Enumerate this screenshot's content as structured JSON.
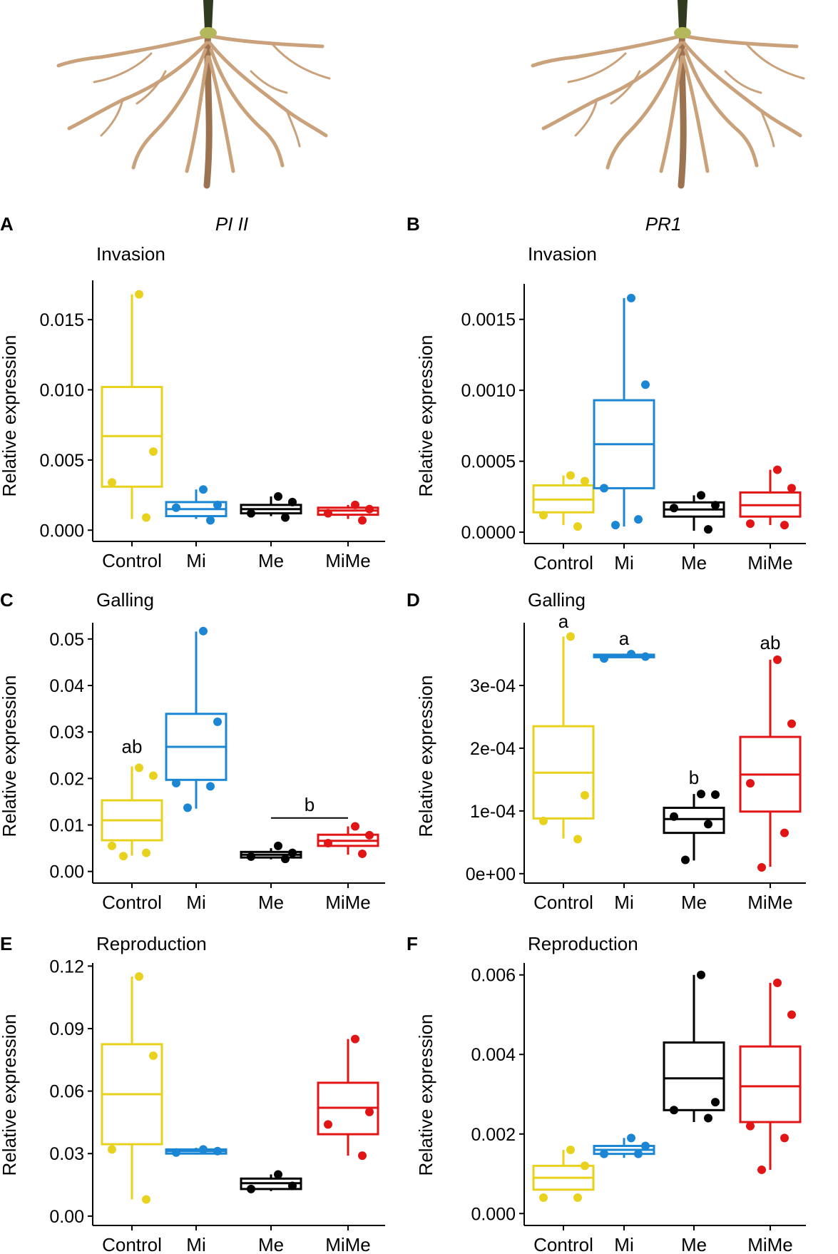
{
  "figure": {
    "colors": {
      "Control": "#e8d21e",
      "Mi": "#1b86d3",
      "Me": "#000000",
      "MiMe": "#e11515"
    },
    "columns": [
      {
        "gene": "PI II",
        "icon": "root-illustration"
      },
      {
        "gene": "PR1",
        "icon": "root-illustration"
      }
    ]
  },
  "chart_data": [
    {
      "panel": "A",
      "type": "box",
      "title": "Invasion",
      "ylabel": "Relative expression",
      "categories": [
        "Control",
        "Mi",
        "Me",
        "MiMe"
      ],
      "ylim": [
        -0.0008,
        0.0178
      ],
      "yticks": [
        0.0,
        0.005,
        0.01,
        0.015
      ],
      "yticklabels": [
        "0.000",
        "0.005",
        "0.010",
        "0.015"
      ],
      "boxes": [
        {
          "group": "Control",
          "min": 0.0008,
          "q1": 0.0031,
          "median": 0.0067,
          "q3": 0.0102,
          "max": 0.0168,
          "points": [
            0.0168,
            0.0056,
            0.0034,
            0.0009
          ]
        },
        {
          "group": "Mi",
          "min": 0.0008,
          "q1": 0.001,
          "median": 0.0015,
          "q3": 0.002,
          "max": 0.0029,
          "points": [
            0.0029,
            0.0018,
            0.0016,
            0.0007
          ]
        },
        {
          "group": "Me",
          "min": 0.001,
          "q1": 0.0012,
          "median": 0.0015,
          "q3": 0.0018,
          "max": 0.0024,
          "points": [
            0.0024,
            0.002,
            0.0012,
            0.0009
          ]
        },
        {
          "group": "MiMe",
          "min": 0.0008,
          "q1": 0.0011,
          "median": 0.0014,
          "q3": 0.0016,
          "max": 0.0018,
          "points": [
            0.0018,
            0.0015,
            0.0012,
            0.0007
          ]
        }
      ],
      "annotations": []
    },
    {
      "panel": "B",
      "type": "box",
      "title": "Invasion",
      "ylabel": "Relative expression",
      "categories": [
        "Control",
        "Mi",
        "Me",
        "MiMe"
      ],
      "ylim": [
        -8e-05,
        0.00175
      ],
      "yticks": [
        0.0,
        0.0005,
        0.001,
        0.0015
      ],
      "yticklabels": [
        "0.0000",
        "0.0005",
        "0.0010",
        "0.0015"
      ],
      "boxes": [
        {
          "group": "Control",
          "min": 5e-05,
          "q1": 0.00014,
          "median": 0.00023,
          "q3": 0.00033,
          "max": 0.0004,
          "points": [
            0.0004,
            0.00036,
            0.00012,
            4e-05
          ]
        },
        {
          "group": "Mi",
          "min": 4e-05,
          "q1": 0.00031,
          "median": 0.00062,
          "q3": 0.00093,
          "max": 0.00165,
          "points": [
            0.00165,
            0.00104,
            0.00031,
            9e-05,
            5e-05
          ]
        },
        {
          "group": "Me",
          "min": 1e-05,
          "q1": 0.00011,
          "median": 0.00016,
          "q3": 0.00021,
          "max": 0.00026,
          "points": [
            0.00026,
            0.00019,
            0.00017,
            2e-05
          ]
        },
        {
          "group": "MiMe",
          "min": 5e-05,
          "q1": 0.00011,
          "median": 0.00019,
          "q3": 0.00028,
          "max": 0.00044,
          "points": [
            0.00044,
            0.00031,
            6e-05,
            5e-05
          ]
        }
      ],
      "annotations": []
    },
    {
      "panel": "C",
      "type": "box",
      "title": "Galling",
      "ylabel": "Relative expression",
      "categories": [
        "Control",
        "Mi",
        "Me",
        "MiMe"
      ],
      "ylim": [
        -0.0025,
        0.0535
      ],
      "yticks": [
        0.0,
        0.01,
        0.02,
        0.03,
        0.04,
        0.05
      ],
      "yticklabels": [
        "0.00",
        "0.01",
        "0.02",
        "0.03",
        "0.04",
        "0.05"
      ],
      "boxes": [
        {
          "group": "Control",
          "min": 0.0034,
          "q1": 0.0067,
          "median": 0.011,
          "q3": 0.0153,
          "max": 0.0226,
          "points": [
            0.0223,
            0.0206,
            0.0055,
            0.004,
            0.0033
          ]
        },
        {
          "group": "Mi",
          "min": 0.0135,
          "q1": 0.0197,
          "median": 0.0268,
          "q3": 0.0339,
          "max": 0.0516,
          "points": [
            0.0517,
            0.0322,
            0.019,
            0.0183,
            0.0137
          ]
        },
        {
          "group": "Me",
          "min": 0.0026,
          "q1": 0.003,
          "median": 0.0036,
          "q3": 0.0042,
          "max": 0.005,
          "points": [
            0.0055,
            0.004,
            0.0032,
            0.0027
          ]
        },
        {
          "group": "MiMe",
          "min": 0.0036,
          "q1": 0.0055,
          "median": 0.0066,
          "q3": 0.0079,
          "max": 0.0097,
          "points": [
            0.0097,
            0.0078,
            0.0061,
            0.0038
          ]
        }
      ],
      "annotations": [
        {
          "text": "ab",
          "x": "Control",
          "y": 0.0255
        },
        {
          "text": "b",
          "x": "Me-MiMe",
          "y": 0.013,
          "bracket": [
            "Me",
            "MiMe"
          ],
          "bracket_y": 0.0115
        }
      ]
    },
    {
      "panel": "D",
      "type": "box",
      "title": "Galling",
      "ylabel": "Relative expression",
      "categories": [
        "Control",
        "Mi",
        "Me",
        "MiMe"
      ],
      "ylim": [
        -1.5e-05,
        0.0004
      ],
      "yticks": [
        0.0,
        0.0001,
        0.0002,
        0.0003
      ],
      "yticklabels": [
        "0e+00",
        "1e-04",
        "2e-04",
        "3e-04"
      ],
      "boxes": [
        {
          "group": "Control",
          "min": 5.6e-05,
          "q1": 8.8e-05,
          "median": 0.000161,
          "q3": 0.000235,
          "max": 0.000378,
          "points": [
            0.000378,
            0.000125,
            8.4e-05,
            5.5e-05
          ]
        },
        {
          "group": "Mi",
          "min": 0.000344,
          "q1": 0.000345,
          "median": 0.000347,
          "q3": 0.000349,
          "max": 0.00035,
          "points": [
            0.00035,
            0.000346,
            0.000343
          ]
        },
        {
          "group": "Me",
          "min": 2.1e-05,
          "q1": 6.5e-05,
          "median": 8.7e-05,
          "q3": 0.000105,
          "max": 0.000127,
          "points": [
            0.000127,
            0.000126,
            9.1e-05,
            7.9e-05,
            2.2e-05
          ]
        },
        {
          "group": "MiMe",
          "min": 1.1e-05,
          "q1": 9.9e-05,
          "median": 0.000158,
          "q3": 0.000218,
          "max": 0.000341,
          "points": [
            0.000341,
            0.000239,
            0.000144,
            6.5e-05,
            1e-05
          ]
        }
      ],
      "annotations": [
        {
          "text": "a",
          "x": "Control",
          "y": 0.000392
        },
        {
          "text": "a",
          "x": "Mi",
          "y": 0.000365
        },
        {
          "text": "b",
          "x": "Me",
          "y": 0.000143
        },
        {
          "text": "ab",
          "x": "MiMe",
          "y": 0.000358
        }
      ]
    },
    {
      "panel": "E",
      "type": "box",
      "title": "Reproduction",
      "ylabel": "Relative expression",
      "categories": [
        "Control",
        "Mi",
        "Me",
        "MiMe"
      ],
      "ylim": [
        -0.0045,
        0.1215
      ],
      "yticks": [
        0.0,
        0.03,
        0.06,
        0.09,
        0.12
      ],
      "yticklabels": [
        "0.00",
        "0.03",
        "0.06",
        "0.09",
        "0.12"
      ],
      "boxes": [
        {
          "group": "Control",
          "min": 0.008,
          "q1": 0.0345,
          "median": 0.0585,
          "q3": 0.0825,
          "max": 0.115,
          "points": [
            0.115,
            0.077,
            0.032,
            0.008
          ]
        },
        {
          "group": "Mi",
          "min": 0.0295,
          "q1": 0.03,
          "median": 0.0312,
          "q3": 0.032,
          "max": 0.0328,
          "points": [
            0.032,
            0.0312,
            0.0305
          ]
        },
        {
          "group": "Me",
          "min": 0.012,
          "q1": 0.013,
          "median": 0.0158,
          "q3": 0.018,
          "max": 0.02,
          "points": [
            0.02,
            0.0145,
            0.013
          ]
        },
        {
          "group": "MiMe",
          "min": 0.029,
          "q1": 0.0393,
          "median": 0.052,
          "q3": 0.064,
          "max": 0.085,
          "points": [
            0.085,
            0.05,
            0.044,
            0.029
          ]
        }
      ],
      "annotations": []
    },
    {
      "panel": "F",
      "type": "box",
      "title": "Reproduction",
      "ylabel": "Relative expression",
      "categories": [
        "Control",
        "Mi",
        "Me",
        "MiMe"
      ],
      "ylim": [
        -0.0003,
        0.0063
      ],
      "yticks": [
        0.0,
        0.002,
        0.004,
        0.006
      ],
      "yticklabels": [
        "0.000",
        "0.002",
        "0.004",
        "0.006"
      ],
      "boxes": [
        {
          "group": "Control",
          "min": 0.0006,
          "q1": 0.0006,
          "median": 0.0009,
          "q3": 0.0012,
          "max": 0.0016,
          "points": [
            0.0016,
            0.0012,
            0.0004,
            0.0004
          ]
        },
        {
          "group": "Mi",
          "min": 0.0014,
          "q1": 0.0015,
          "median": 0.0016,
          "q3": 0.0017,
          "max": 0.0019,
          "points": [
            0.0019,
            0.0017,
            0.0015,
            0.0015
          ]
        },
        {
          "group": "Me",
          "min": 0.0023,
          "q1": 0.0026,
          "median": 0.0034,
          "q3": 0.0043,
          "max": 0.006,
          "points": [
            0.006,
            0.0028,
            0.0026,
            0.0024
          ]
        },
        {
          "group": "MiMe",
          "min": 0.0011,
          "q1": 0.0023,
          "median": 0.0032,
          "q3": 0.0042,
          "max": 0.0058,
          "points": [
            0.0058,
            0.005,
            0.0022,
            0.0019,
            0.0011
          ]
        }
      ],
      "annotations": []
    }
  ]
}
